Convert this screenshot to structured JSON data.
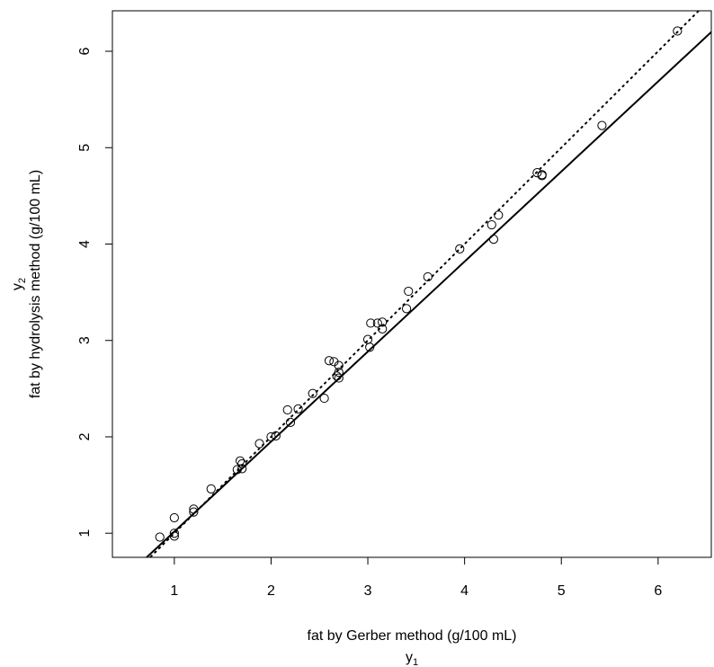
{
  "chart_data": {
    "type": "scatter",
    "title": "",
    "xlabel": {
      "main": "fat by Gerber method (g/100 mL)",
      "symbol": "y",
      "subscript": "1"
    },
    "ylabel": {
      "main": "fat by hydrolysis method (g/100 mL)",
      "symbol": "y",
      "subscript": "2"
    },
    "xlim": [
      0.36,
      6.55
    ],
    "ylim": [
      0.75,
      6.42
    ],
    "x_ticks": [
      1,
      2,
      3,
      4,
      5,
      6
    ],
    "y_ticks": [
      1,
      2,
      3,
      4,
      5,
      6
    ],
    "grid": false,
    "legend": "none",
    "points": {
      "x": [
        0.85,
        1.0,
        1.0,
        1.0,
        1.2,
        1.2,
        1.38,
        1.65,
        1.68,
        1.7,
        1.7,
        1.88,
        2.0,
        2.05,
        2.17,
        2.2,
        2.28,
        2.43,
        2.55,
        2.6,
        2.65,
        2.68,
        2.7,
        2.7,
        2.7,
        3.0,
        3.02,
        3.03,
        3.1,
        3.15,
        3.15,
        3.4,
        3.42,
        3.62,
        3.95,
        4.28,
        4.3,
        4.35,
        4.75,
        4.8,
        4.8,
        5.42,
        6.2
      ],
      "y": [
        0.96,
        1.16,
        1.0,
        0.97,
        1.25,
        1.22,
        1.46,
        1.66,
        1.75,
        1.67,
        1.72,
        1.93,
        2.0,
        2.01,
        2.28,
        2.15,
        2.29,
        2.45,
        2.4,
        2.79,
        2.78,
        2.63,
        2.74,
        2.67,
        2.61,
        3.01,
        2.93,
        3.18,
        3.18,
        3.19,
        3.12,
        3.33,
        3.51,
        3.66,
        3.95,
        4.2,
        4.05,
        4.3,
        4.74,
        4.72,
        4.71,
        5.23,
        6.21
      ]
    },
    "lines": [
      {
        "style": "solid",
        "x": [
          0.5,
          6.7
        ],
        "y": [
          0.55,
          6.34
        ]
      },
      {
        "style": "dotted",
        "x": [
          0.5,
          6.7
        ],
        "y": [
          0.5,
          6.7
        ]
      }
    ]
  }
}
